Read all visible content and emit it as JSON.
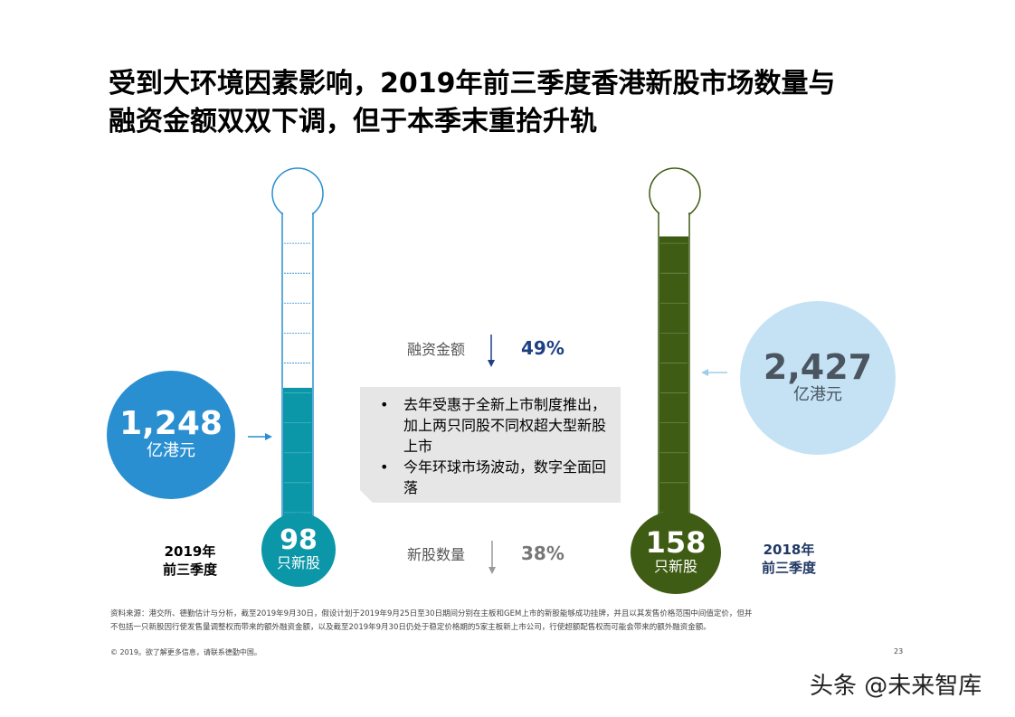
{
  "title": {
    "line1": "受到大环境因素影响，2019年前三季度香港新股市场数量与",
    "line2": "融资金额双双下调，但于本季末重拾升轨"
  },
  "chart_data": {
    "type": "thermometer-comparison",
    "series": [
      {
        "period_line1": "2019年",
        "period_line2": "前三季度",
        "funds_raised": 1248,
        "funds_display": "1,248",
        "funds_unit": "亿港元",
        "ipo_count": 98,
        "count_display": "98",
        "count_unit": "只新股",
        "fill_fraction": 0.47,
        "color": "#0c97a9"
      },
      {
        "period_line1": "2018年",
        "period_line2": "前三季度",
        "funds_raised": 2427,
        "funds_display": "2,427",
        "funds_unit": "亿港元",
        "ipo_count": 158,
        "count_display": "158",
        "count_unit": "只新股",
        "fill_fraction": 0.93,
        "color": "#3f5c14"
      }
    ],
    "changes": {
      "funds": {
        "label": "融资金额",
        "value": "49%",
        "direction": "down"
      },
      "count": {
        "label": "新股数量",
        "value": "38%",
        "direction": "down"
      }
    }
  },
  "callout": {
    "bullets": [
      "去年受惠于全新上市制度推出，加上两只同股不同权超大型新股上市",
      "今年环球市场波动，数字全面回落"
    ]
  },
  "footnote": {
    "line1": "资料来源：港交所、德勤估计与分析，截至2019年9月30日，假设计划于2019年9月25日至30日期间分别在主板和GEM上市的新股能够成功挂牌，并且以其发售价格范围中间值定价，但并",
    "line2": "不包括一只新股因行使发售量调整权而带来的额外融资金额，以及截至2019年9月30日仍处于稳定价格期的5家主板新上市公司，行使超额配售权而可能会带来的额外融资金额。"
  },
  "copyright": "© 2019。欲了解更多信息，请联系德勤中国。",
  "page_number": "23",
  "watermark": "头条 @未来智库",
  "colors": {
    "teal": "#0c97a9",
    "olive": "#3f5c14",
    "blue": "#2a8fd1",
    "lightblue": "#c5e2f5",
    "navy": "#1f3f84"
  }
}
